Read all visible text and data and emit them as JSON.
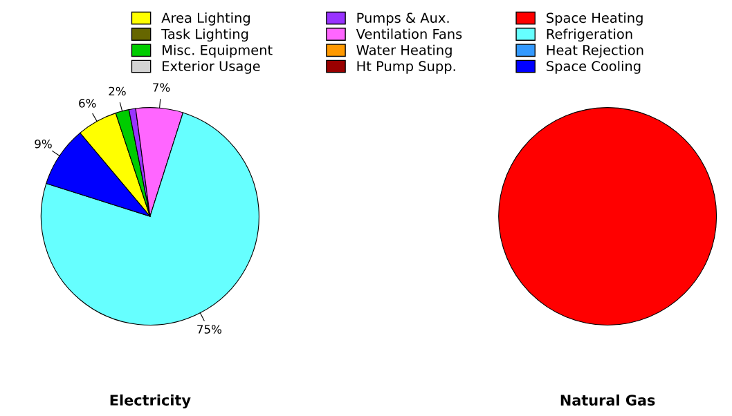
{
  "chart_data": [
    {
      "type": "pie",
      "title": "Electricity",
      "legend": "top",
      "categories": [
        "Area Lighting",
        "Task Lighting",
        "Misc. Equipment",
        "Exterior Usage",
        "Pumps & Aux.",
        "Ventilation Fans",
        "Water Heating",
        "Ht Pump Supp.",
        "Space Heating",
        "Refrigeration",
        "Heat Rejection",
        "Space Cooling"
      ],
      "values": [
        6,
        0,
        2,
        0,
        1,
        7,
        0,
        0,
        0,
        75,
        0,
        9
      ],
      "value_labels": [
        "6%",
        null,
        "2%",
        null,
        null,
        "7%",
        null,
        null,
        null,
        "75%",
        null,
        "9%"
      ],
      "colors": [
        "#ffff00",
        "#666600",
        "#00cc00",
        "#d3d3d3",
        "#9933ff",
        "#ff66ff",
        "#ff9900",
        "#990000",
        "#ff0000",
        "#66ffff",
        "#3399ff",
        "#0000ff"
      ]
    },
    {
      "type": "pie",
      "title": "Natural Gas",
      "categories": [
        null
      ],
      "values": [
        100
      ],
      "colors": [
        "#ff0000"
      ]
    }
  ]
}
